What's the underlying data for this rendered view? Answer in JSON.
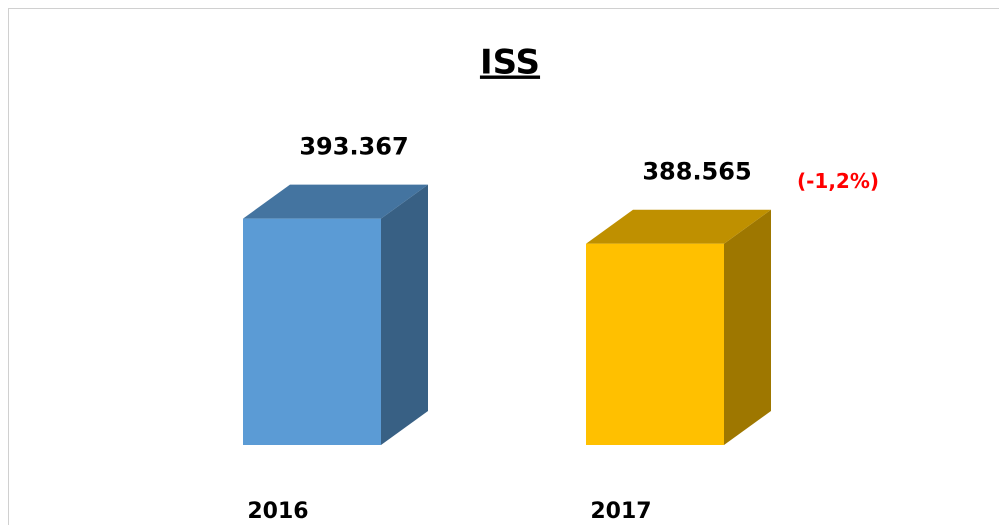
{
  "chart_data": {
    "type": "bar3d",
    "title": "ISS",
    "categories": [
      "2016",
      "2017"
    ],
    "values": [
      393367,
      388565
    ],
    "value_labels": [
      "393.367",
      "388.565"
    ],
    "colors": [
      "#5b9bd5",
      "#ffc000"
    ],
    "ylim": [
      350000,
      400000
    ],
    "annotations": [
      {
        "text": "(-1,2%)",
        "color": "#ff0000",
        "category": 1
      }
    ]
  }
}
